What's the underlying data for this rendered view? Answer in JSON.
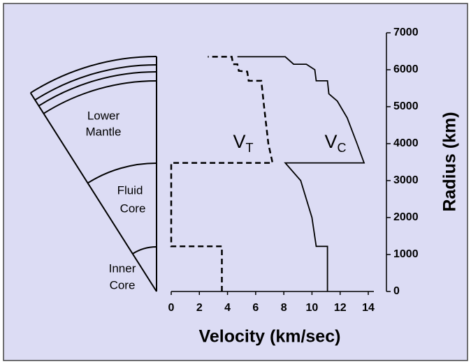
{
  "chart_data": {
    "type": "line",
    "x_label": "Velocity (km/sec)",
    "y_label": "Radius (km)",
    "xlim": [
      0,
      14
    ],
    "xticks": [
      0,
      2,
      4,
      6,
      8,
      10,
      12,
      14
    ],
    "ylim": [
      0,
      7000
    ],
    "yticks": [
      0,
      1000,
      2000,
      3000,
      4000,
      5000,
      6000,
      7000
    ],
    "series": [
      {
        "name": "V",
        "subscript": "T",
        "color": "#000000",
        "dashed": true,
        "x": [
          3.6,
          3.6,
          0,
          0,
          7.2,
          6.9,
          6.6,
          6.4,
          5.5,
          5.4,
          4.8,
          4.7,
          4.4,
          4.3,
          2.6
        ],
        "values": [
          0,
          1220,
          1220,
          3480,
          3480,
          4000,
          5000,
          5700,
          5700,
          5950,
          5970,
          6150,
          6150,
          6350,
          6350
        ]
      },
      {
        "name": "V",
        "subscript": "C",
        "color": "#000000",
        "dashed": false,
        "x": [
          11.1,
          11.1,
          10.3,
          10.0,
          9.2,
          8.1,
          13.7,
          13.2,
          12.5,
          11.8,
          11.2,
          11.1,
          10.3,
          10.2,
          9.6,
          8.7,
          8.1,
          4.7
        ],
        "values": [
          0,
          1220,
          1220,
          2000,
          3000,
          3480,
          3480,
          4000,
          4700,
          5150,
          5350,
          5700,
          5700,
          6000,
          6150,
          6150,
          6350,
          6350
        ]
      }
    ]
  },
  "diagram": {
    "labels": [
      [
        "Lower",
        "Mantle"
      ],
      [
        "Fluid",
        "Core"
      ],
      [
        "Inner",
        "Core"
      ]
    ]
  }
}
